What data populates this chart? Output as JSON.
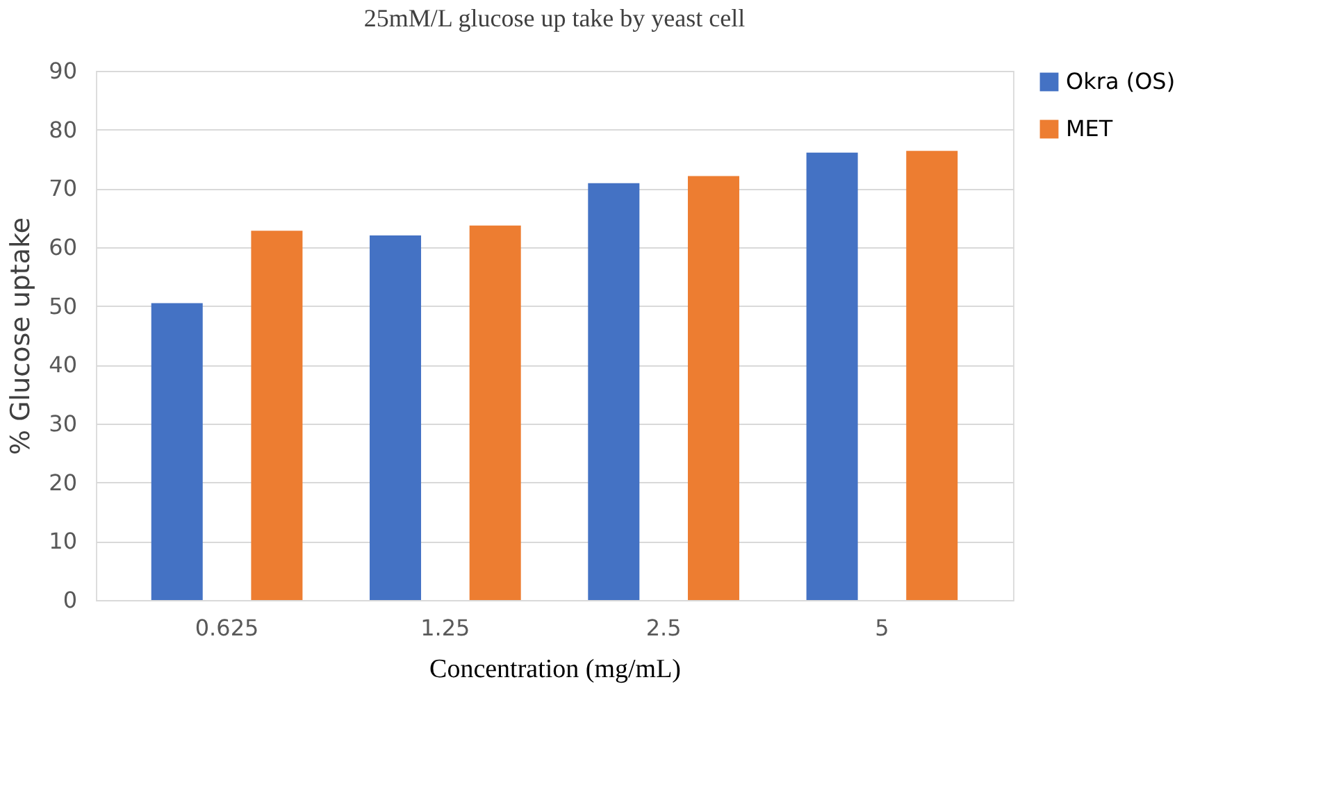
{
  "chart_data": {
    "type": "bar",
    "title": "25mM/L glucose up take by yeast cell",
    "xlabel": "Concentration (mg/mL)",
    "ylabel": "% Glucose uptake",
    "categories": [
      "0.625",
      "1.25",
      "2.5",
      "5"
    ],
    "series": [
      {
        "name": "Okra (OS)",
        "color": "#4472c4",
        "values": [
          50.5,
          62,
          70.9,
          76.1
        ]
      },
      {
        "name": "MET",
        "color": "#ed7d31",
        "values": [
          62.8,
          63.7,
          72.1,
          76.4
        ]
      }
    ],
    "ylim": [
      0,
      90
    ],
    "yticks": [
      0,
      10,
      20,
      30,
      40,
      50,
      60,
      70,
      80,
      90
    ],
    "grid": "y",
    "legend": "right"
  }
}
